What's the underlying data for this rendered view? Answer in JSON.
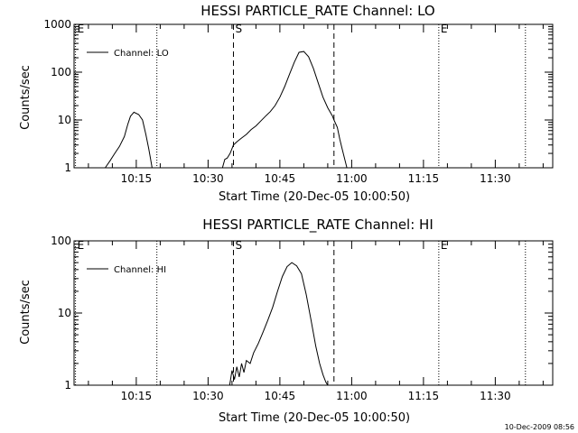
{
  "colors": {
    "background": "#ffffff",
    "foreground": "#000000"
  },
  "timestamp": "10-Dec-2009 08:56",
  "chart_data": [
    {
      "type": "line",
      "title": "HESSI PARTICLE_RATE Channel: LO",
      "xlabel": "Start Time (20-Dec-05 10:00:50)",
      "ylabel": "Counts/sec",
      "yscale": "log",
      "xlim": [
        "10:02",
        "11:42"
      ],
      "ylim": [
        1,
        1000
      ],
      "xtick_labels": [
        "10:15",
        "10:30",
        "10:45",
        "11:00",
        "11:15",
        "11:30"
      ],
      "xtick_values_min": [
        15,
        30,
        45,
        60,
        75,
        90
      ],
      "ytick_labels": [
        "1",
        "10",
        "100",
        "1000"
      ],
      "ytick_values": [
        1,
        10,
        100,
        1000
      ],
      "legend": {
        "label": "Channel: LO",
        "position": "top-left"
      },
      "markers": [
        {
          "label": "E",
          "time_min": 2.3,
          "style": "dotted"
        },
        {
          "label": "",
          "time_min": 19.3,
          "style": "dotted"
        },
        {
          "label": "S",
          "time_min": 35.3,
          "style": "dashed"
        },
        {
          "label": "",
          "time_min": 56.3,
          "style": "dashed"
        },
        {
          "label": "E",
          "time_min": 78.2,
          "style": "dotted"
        },
        {
          "label": "",
          "time_min": 96.3,
          "style": "dotted"
        }
      ],
      "series": [
        {
          "x_min": [
            8.5,
            9.5,
            10.5,
            11.5,
            12.5,
            13.2,
            13.8,
            14.5,
            15.5,
            16.3,
            17.0,
            17.6,
            18.0,
            18.3,
            33.0,
            33.5,
            34.0,
            34.6,
            35.3,
            36.0,
            37.0,
            38.0,
            39.0,
            40.0,
            41.0,
            42.0,
            43.0,
            44.0,
            45.0,
            46.0,
            47.0,
            48.0,
            49.0,
            50.0,
            51.0,
            52.0,
            53.0,
            54.0,
            55.0,
            56.0,
            56.3,
            57.0,
            57.5,
            58.0,
            58.5,
            59.0
          ],
          "y": [
            1,
            1.4,
            2,
            2.8,
            4.5,
            8,
            12,
            14.5,
            13,
            10,
            5,
            2.5,
            1.5,
            1,
            1,
            1.5,
            1.6,
            2,
            3,
            3.5,
            4.2,
            5,
            6.3,
            7.5,
            9.5,
            12,
            15,
            20,
            30,
            50,
            90,
            160,
            260,
            270,
            210,
            120,
            60,
            30,
            18,
            12,
            10,
            7,
            4,
            2.5,
            1.6,
            1
          ]
        }
      ]
    },
    {
      "type": "line",
      "title": "HESSI PARTICLE_RATE Channel: HI",
      "xlabel": "Start Time (20-Dec-05 10:00:50)",
      "ylabel": "Counts/sec",
      "yscale": "log",
      "xlim": [
        "10:02",
        "11:42"
      ],
      "ylim": [
        1,
        100
      ],
      "xtick_labels": [
        "10:15",
        "10:30",
        "10:45",
        "11:00",
        "11:15",
        "11:30"
      ],
      "xtick_values_min": [
        15,
        30,
        45,
        60,
        75,
        90
      ],
      "ytick_labels": [
        "1",
        "10",
        "100"
      ],
      "ytick_values": [
        1,
        10,
        100
      ],
      "legend": {
        "label": "Channel: HI",
        "position": "top-left"
      },
      "markers": [
        {
          "label": "E",
          "time_min": 2.3,
          "style": "dotted"
        },
        {
          "label": "",
          "time_min": 19.3,
          "style": "dotted"
        },
        {
          "label": "S",
          "time_min": 35.3,
          "style": "dashed"
        },
        {
          "label": "",
          "time_min": 56.3,
          "style": "dashed"
        },
        {
          "label": "E",
          "time_min": 78.2,
          "style": "dotted"
        },
        {
          "label": "",
          "time_min": 96.3,
          "style": "dotted"
        }
      ],
      "series": [
        {
          "x_min": [
            34.5,
            35.0,
            35.5,
            36.0,
            36.5,
            37.0,
            37.5,
            38.0,
            38.8,
            39.5,
            40.5,
            41.5,
            42.5,
            43.5,
            44.5,
            45.5,
            46.5,
            47.5,
            48.5,
            49.5,
            50.5,
            51.5,
            52.5,
            53.3,
            54.0,
            54.6,
            55.0
          ],
          "y": [
            1,
            1.6,
            1.2,
            1.8,
            1.3,
            2,
            1.5,
            2.2,
            2,
            2.8,
            3.8,
            5.5,
            8,
            12,
            20,
            32,
            44,
            50,
            45,
            35,
            18,
            8,
            3.5,
            2,
            1.4,
            1.1,
            1
          ]
        }
      ]
    }
  ]
}
